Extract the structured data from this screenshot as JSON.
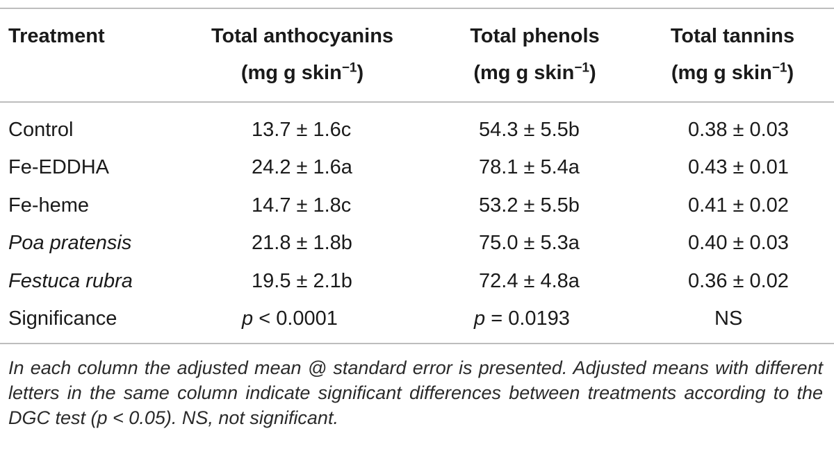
{
  "table": {
    "headers": [
      {
        "line1": "Treatment",
        "line2": ""
      },
      {
        "line1": "Total anthocyanins",
        "line2": "(mg g skin",
        "sup": "−1",
        "close": ")"
      },
      {
        "line1": "Total phenols",
        "line2": "(mg g skin",
        "sup": "−1",
        "close": ")"
      },
      {
        "line1": "Total tannins",
        "line2": "(mg g skin",
        "sup": "−1",
        "close": ")"
      }
    ],
    "rows": [
      {
        "treatment": "Control",
        "anthocyanins": "13.7 ± 1.6c",
        "phenols": "54.3 ± 5.5b",
        "tannins": "0.38 ± 0.03"
      },
      {
        "treatment": "Fe-EDDHA",
        "anthocyanins": "24.2 ± 1.6a",
        "phenols": "78.1 ± 5.4a",
        "tannins": "0.43 ± 0.01"
      },
      {
        "treatment": "Fe-heme",
        "anthocyanins": "14.7 ± 1.8c",
        "phenols": "53.2 ± 5.5b",
        "tannins": "0.41 ± 0.02"
      },
      {
        "treatment": "Poa pratensis",
        "anthocyanins": "21.8 ± 1.8b",
        "phenols": "75.0 ± 5.3a",
        "tannins": "0.40 ± 0.03"
      },
      {
        "treatment": "Festuca rubra",
        "anthocyanins": "19.5 ± 2.1b",
        "phenols": "72.4 ± 4.8a",
        "tannins": "0.36 ± 0.02"
      }
    ],
    "significance": {
      "label": "Significance",
      "anthocyanins_p": "p",
      "anthocyanins_rest": " < 0.0001",
      "phenols_p": "p",
      "phenols_rest": " = 0.0193",
      "tannins": "NS"
    }
  },
  "footnote": "In each column the adjusted mean @ standard error is presented. Adjusted means with different letters in the same column indicate significant differences between treatments according to the DGC test (p < 0.05). NS, not significant."
}
